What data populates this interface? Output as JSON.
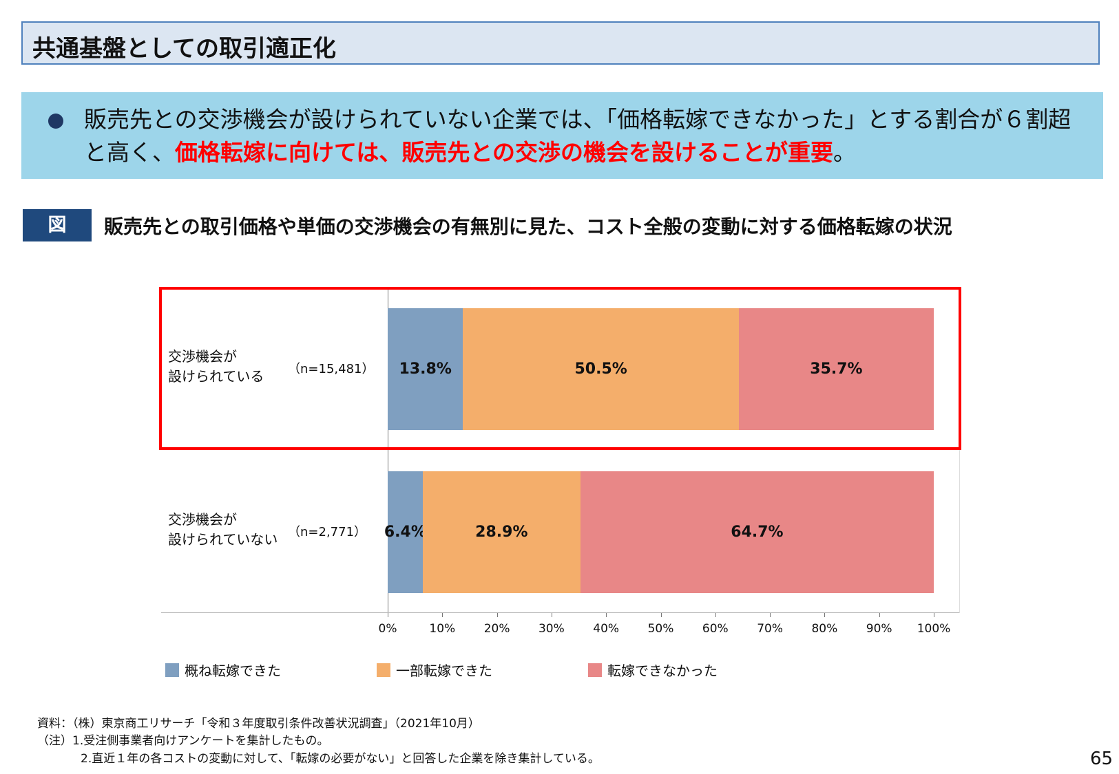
{
  "header": {
    "title": "共通基盤としての取引適正化"
  },
  "summary": {
    "text_plain": "販売先との交渉機会が設けられていない企業では、「価格転嫁できなかった」とする割合が６割超と高く、",
    "text_emphasis": "価格転嫁に向けては、販売先との交渉の機会を設けることが重要",
    "text_end": "。"
  },
  "figure": {
    "label": "図",
    "title": "販売先との取引価格や単価の交渉機会の有無別に見た、コスト全般の変動に対する価格転嫁の状況"
  },
  "chart_data": {
    "type": "bar",
    "orientation": "horizontal",
    "stacked": true,
    "categories": [
      {
        "label": "交渉機会が\n設けられている",
        "n": "（n=15,481）"
      },
      {
        "label": "交渉機会が\n設けられていない",
        "n": "（n=2,771）"
      }
    ],
    "series": [
      {
        "name": "概ね転嫁できた",
        "color": "#7f9fc0",
        "values": [
          13.8,
          6.4
        ],
        "labels": [
          "13.8%",
          "6.4%"
        ]
      },
      {
        "name": "一部転嫁できた",
        "color": "#f4ae6b",
        "values": [
          50.5,
          28.9
        ],
        "labels": [
          "50.5%",
          "28.9%"
        ]
      },
      {
        "name": "転嫁できなかった",
        "color": "#e88787",
        "values": [
          35.7,
          64.7
        ],
        "labels": [
          "35.7%",
          "64.7%"
        ]
      }
    ],
    "xlim": [
      0,
      100
    ],
    "xticks": [
      "0%",
      "10%",
      "20%",
      "30%",
      "40%",
      "50%",
      "60%",
      "70%",
      "80%",
      "90%",
      "100%"
    ],
    "legend": "bottom",
    "highlight": "交渉機会が設けられている",
    "highlight_color": "#ff0000"
  },
  "footnotes": {
    "source": "資料：（株）東京商工リサーチ「令和３年度取引条件改善状況調査」（2021年10月）",
    "note1": "（注）1.受注側事業者向けアンケートを集計したもの。",
    "note2": "2.直近１年の各コストの変動に対して、「転嫁の必要がない」と回答した企業を除き集計している。"
  },
  "page_number": "65"
}
